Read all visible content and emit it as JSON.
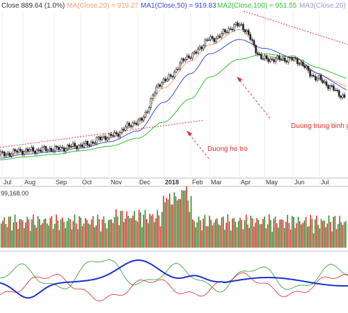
{
  "header": {
    "close_label": "Close 889.64 (1.0%)",
    "ma1_label": "MA(Close,20) = 919.27",
    "ma2_label": "MA1(Close,50) = 919.83",
    "ma3_label": "MA2(Close,100) = 951.55",
    "ma4_label": "MA3(Close,20)"
  },
  "colors": {
    "up": "#1f8a1f",
    "down": "#e02020",
    "ma20": "#f0a070",
    "ma50": "#3a46d8",
    "ma100": "#30c030",
    "ma3": "#9a9ad0",
    "trend": "#e03030",
    "arrow": "#e03030",
    "osc_main": "#1a2fd0",
    "osc_plus": "#1f9a1f",
    "osc_minus": "#e02020"
  },
  "chart_data": [
    {
      "type": "candlestick",
      "x_ticks": [
        "Jul",
        "Aug",
        "Sep",
        "Oct",
        "Nov",
        "Dec",
        "2018",
        "Feb",
        "Mar",
        "Apr",
        "May",
        "Jun",
        "Jul"
      ],
      "series": [
        {
          "name": "Close",
          "points": [
            {
              "x": "Jul",
              "y": 470
            },
            {
              "x": "Aug",
              "y": 490
            },
            {
              "x": "Sep",
              "y": 500
            },
            {
              "x": "Oct",
              "y": 520
            },
            {
              "x": "Nov",
              "y": 570
            },
            {
              "x": "Dec",
              "y": 650
            },
            {
              "x": "2018",
              "y": 880
            },
            {
              "x": "Feb",
              "y": 1020
            },
            {
              "x": "Mar",
              "y": 1110
            },
            {
              "x": "Apr",
              "y": 1190
            },
            {
              "x": "May",
              "y": 1000
            },
            {
              "x": "Jun",
              "y": 1000
            },
            {
              "x": "Jul",
              "y": 890
            }
          ]
        },
        {
          "name": "MA(Close,20)",
          "points": [
            {
              "x": "Jul",
              "y": 460
            },
            {
              "x": "Aug",
              "y": 480
            },
            {
              "x": "Sep",
              "y": 495
            },
            {
              "x": "Oct",
              "y": 515
            },
            {
              "x": "Nov",
              "y": 560
            },
            {
              "x": "Dec",
              "y": 635
            },
            {
              "x": "2018",
              "y": 840
            },
            {
              "x": "Feb",
              "y": 990
            },
            {
              "x": "Mar",
              "y": 1080
            },
            {
              "x": "Apr",
              "y": 1165
            },
            {
              "x": "May",
              "y": 1020
            },
            {
              "x": "Jun",
              "y": 990
            },
            {
              "x": "Jul",
              "y": 919
            }
          ]
        },
        {
          "name": "MA1(Close,50)",
          "points": [
            {
              "x": "Jul",
              "y": 450
            },
            {
              "x": "Aug",
              "y": 470
            },
            {
              "x": "Sep",
              "y": 485
            },
            {
              "x": "Oct",
              "y": 505
            },
            {
              "x": "Nov",
              "y": 540
            },
            {
              "x": "Dec",
              "y": 600
            },
            {
              "x": "2018",
              "y": 760
            },
            {
              "x": "Feb",
              "y": 920
            },
            {
              "x": "Mar",
              "y": 1030
            },
            {
              "x": "Apr",
              "y": 1110
            },
            {
              "x": "May",
              "y": 1060
            },
            {
              "x": "Jun",
              "y": 1010
            },
            {
              "x": "Jul",
              "y": 920
            }
          ]
        },
        {
          "name": "MA2(Close,100)",
          "points": [
            {
              "x": "Jul",
              "y": 440
            },
            {
              "x": "Aug",
              "y": 455
            },
            {
              "x": "Sep",
              "y": 470
            },
            {
              "x": "Oct",
              "y": 490
            },
            {
              "x": "Nov",
              "y": 515
            },
            {
              "x": "Dec",
              "y": 560
            },
            {
              "x": "2018",
              "y": 650
            },
            {
              "x": "Feb",
              "y": 780
            },
            {
              "x": "Mar",
              "y": 900
            },
            {
              "x": "Apr",
              "y": 1000
            },
            {
              "x": "May",
              "y": 1030
            },
            {
              "x": "Jun",
              "y": 1010
            },
            {
              "x": "Jul",
              "y": 952
            }
          ]
        }
      ],
      "annotations": [
        "Duong trung binh g",
        "Duong ho tro"
      ]
    },
    {
      "type": "bar",
      "header_value": "99,168.00",
      "note": "Daily volume bars (green = up day, red = down day); spike in early Feb 2018."
    },
    {
      "type": "line",
      "note": "Oscillator panel with three lines: blue main line, green and red signal lines."
    }
  ]
}
